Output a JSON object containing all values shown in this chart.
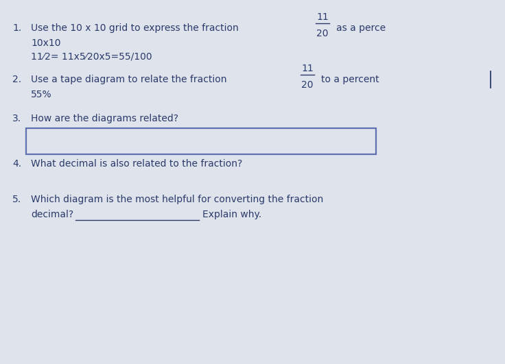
{
  "bg_color": "#dfe3ec",
  "text_color": "#2a3a6a",
  "line1_num": "1.",
  "line1_main": "Use the 10 x 10 grid to express the fraction",
  "line1_suffix": "as a perce",
  "line1_sub1": "10x10",
  "line1_sub2": "11⁄2= 11x5⁄20x5=55/100",
  "line2_num": "2.",
  "line2_main": "Use a tape diagram to relate the fraction",
  "line2_suffix": "to a percent",
  "line2_sub1": "55%",
  "line3_num": "3.",
  "line3_text": "How are the diagrams related?",
  "box_edge_color": "#6070b0",
  "line4_num": "4.",
  "line4_text": "What decimal is also related to the fraction?",
  "line5_num": "5.",
  "line5_text": "Which diagram is the most helpful for converting the fraction",
  "line5_sub": "decimal?",
  "line5_sub2": "Explain why.",
  "underline_color": "#2a3a6a",
  "frac_num": "11",
  "frac_den": "20",
  "fontsize_main": 10,
  "fontsize_num": 10.5
}
